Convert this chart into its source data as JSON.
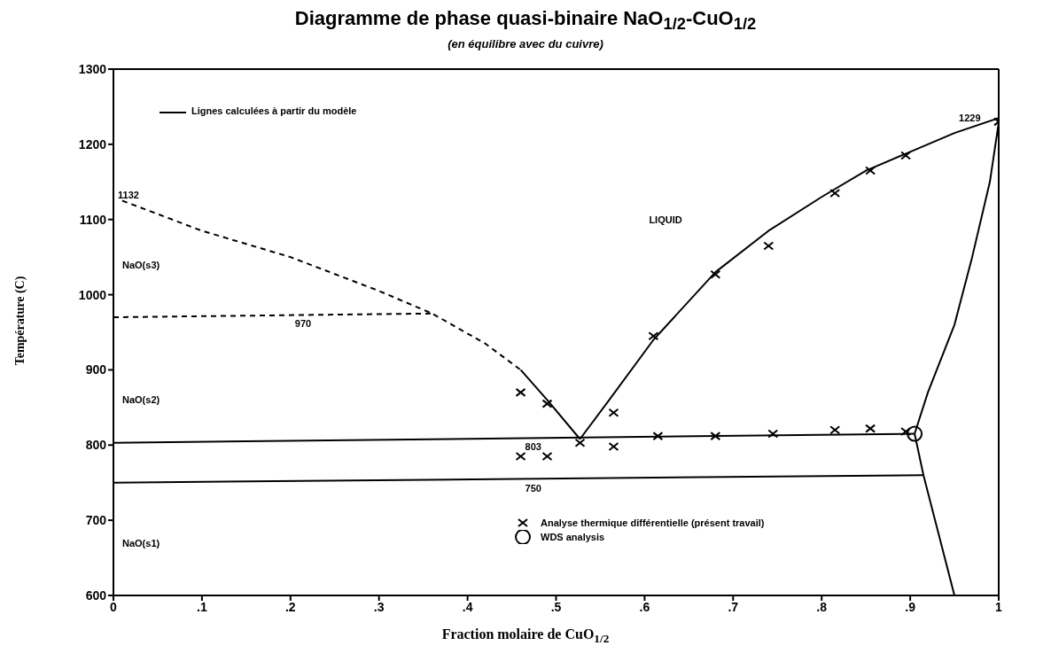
{
  "chart_data": {
    "type": "line",
    "title": "Diagramme de phase quasi-binaire NaO$_{1/2}$-CuO$_{1/2}$",
    "subtitle": "(en équilibre avec du cuivre)",
    "xlabel": "Fraction molaire de CuO$_{1/2}$",
    "ylabel": "Température (C)",
    "xlim": [
      0,
      1
    ],
    "ylim": [
      600,
      1300
    ],
    "xticks": [
      0,
      {
        "value": 0.1,
        "label": ".1"
      },
      {
        "value": 0.2,
        "label": ".2"
      },
      {
        "value": 0.3,
        "label": ".3"
      },
      {
        "value": 0.4,
        "label": ".4"
      },
      {
        "value": 0.5,
        "label": ".5"
      },
      {
        "value": 0.6,
        "label": ".6"
      },
      {
        "value": 0.7,
        "label": ".7"
      },
      {
        "value": 0.8,
        "label": ".8"
      },
      {
        "value": 0.9,
        "label": ".9"
      },
      1
    ],
    "yticks": [
      600,
      700,
      800,
      900,
      1000,
      1100,
      1200,
      1300
    ],
    "grid": false,
    "legend": "top left",
    "marker": "none",
    "series": [
      {
        "name": "Lignes calculées à partir du modèle",
        "color": "#000000",
        "line_style": "solid",
        "x": [
          0.527,
          0.56,
          0.61,
          0.68,
          0.74,
          0.8,
          0.85,
          0.9,
          0.95,
          1.0
        ],
        "values": [
          808,
          860,
          940,
          1030,
          1085,
          1130,
          1165,
          1190,
          1215,
          1235
        ]
      },
      {
        "color": "#000000",
        "line_style": "solid",
        "x": [
          0.46,
          0.49,
          0.527
        ],
        "values": [
          900,
          860,
          808
        ]
      },
      {
        "color": "#000000",
        "line_style": "dashed",
        "x": [
          0.01,
          0.1,
          0.2,
          0.3,
          0.36,
          0.42,
          0.46
        ],
        "values": [
          1125,
          1085,
          1050,
          1005,
          975,
          935,
          900
        ]
      },
      {
        "color": "#000000",
        "line_style": "dashed",
        "x": [
          0,
          0.36
        ],
        "values": [
          970,
          975
        ]
      },
      {
        "color": "#000000",
        "line_style": "solid",
        "x": [
          0,
          0.905
        ],
        "values": [
          803,
          815
        ]
      },
      {
        "color": "#000000",
        "line_style": "solid",
        "x": [
          0,
          0.915
        ],
        "values": [
          750,
          760
        ]
      },
      {
        "color": "#000000",
        "line_style": "solid",
        "x": [
          0.905,
          0.92,
          0.95,
          0.97,
          0.99,
          1.0
        ],
        "values": [
          815,
          870,
          960,
          1050,
          1150,
          1229
        ]
      },
      {
        "color": "#000000",
        "line_style": "solid",
        "x": [
          0.905,
          0.915,
          0.95
        ],
        "values": [
          815,
          760,
          600
        ]
      },
      {
        "name": "Analyse thermique différentielle (présent travail)",
        "type": "scatter",
        "marker": "cross",
        "color": "#000000",
        "x": [
          0.46,
          0.49,
          0.46,
          0.49,
          0.527,
          0.565,
          0.565,
          0.61,
          0.615,
          0.68,
          0.68,
          0.74,
          0.745,
          0.815,
          0.815,
          0.855,
          0.855,
          0.895,
          0.895,
          1.0
        ],
        "values": [
          870,
          855,
          785,
          785,
          803,
          843,
          798,
          945,
          812,
          1027,
          812,
          1065,
          815,
          1135,
          820,
          1165,
          822,
          1185,
          818,
          1230
        ]
      },
      {
        "name": "WDS analysis",
        "type": "scatter",
        "marker": "circle",
        "color": "#000000",
        "x": [
          0.905
        ],
        "values": [
          815
        ]
      }
    ],
    "annotations": [
      "1132",
      "970",
      "803",
      "750",
      "1229",
      "LIQUID",
      "NaO(s3)",
      "NaO(s2)",
      "NaO(s1)"
    ]
  }
}
